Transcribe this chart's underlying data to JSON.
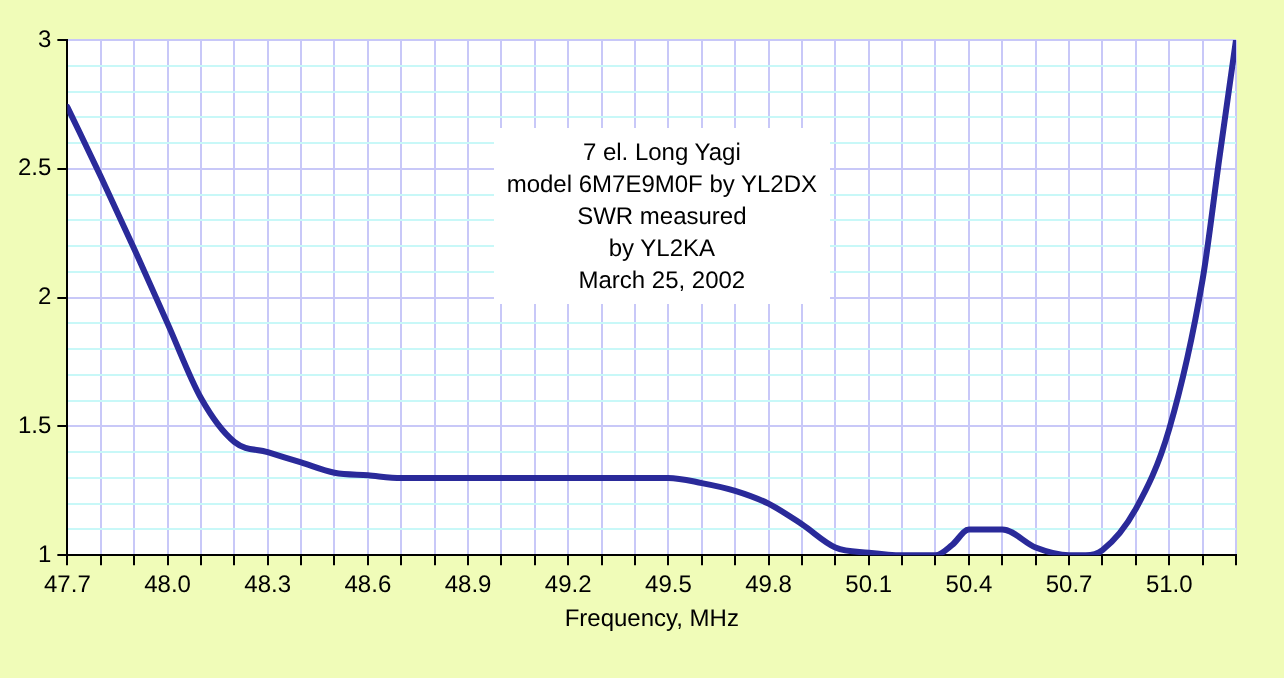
{
  "chart_data": {
    "type": "line",
    "xlabel": "Frequency, MHz",
    "annotations": [
      "7 el. Long Yagi",
      "model 6M7E9M0F by YL2DX",
      "SWR measured",
      "by YL2KA",
      "March 25, 2002"
    ],
    "x": [
      47.7,
      47.8,
      47.9,
      48.0,
      48.1,
      48.2,
      48.3,
      48.4,
      48.5,
      48.6,
      48.7,
      49.0,
      49.3,
      49.5,
      49.6,
      49.7,
      49.8,
      49.9,
      50.0,
      50.1,
      50.2,
      50.3,
      50.35,
      50.4,
      50.5,
      50.6,
      50.7,
      50.75,
      50.8,
      50.9,
      51.0,
      51.1,
      51.15,
      51.2
    ],
    "series": [
      {
        "color": "#2a2a9a",
        "values": [
          2.74,
          2.47,
          2.19,
          1.9,
          1.61,
          1.44,
          1.4,
          1.36,
          1.32,
          1.31,
          1.3,
          1.3,
          1.3,
          1.3,
          1.28,
          1.25,
          1.2,
          1.12,
          1.03,
          1.01,
          1.0,
          1.0,
          1.04,
          1.1,
          1.1,
          1.03,
          1.0,
          1.0,
          1.02,
          1.18,
          1.49,
          2.07,
          2.54,
          3.0
        ]
      }
    ],
    "xlim": [
      47.7,
      51.2
    ],
    "xticks": [
      47.7,
      {
        "value": 47.8,
        "label": null
      },
      {
        "value": 47.9,
        "label": null
      },
      {
        "value": 48.0,
        "label": "48.0"
      },
      {
        "value": 48.1,
        "label": null
      },
      {
        "value": 48.2,
        "label": null
      },
      48.3,
      {
        "value": 48.4,
        "label": null
      },
      {
        "value": 48.5,
        "label": null
      },
      48.6,
      {
        "value": 48.7,
        "label": null
      },
      {
        "value": 48.8,
        "label": null
      },
      48.9,
      {
        "value": 49.0,
        "label": null
      },
      {
        "value": 49.1,
        "label": null
      },
      49.2,
      {
        "value": 49.3,
        "label": null
      },
      {
        "value": 49.4,
        "label": null
      },
      49.5,
      {
        "value": 49.6,
        "label": null
      },
      {
        "value": 49.7,
        "label": null
      },
      49.8,
      {
        "value": 49.9,
        "label": null
      },
      {
        "value": 50.0,
        "label": null
      },
      50.1,
      {
        "value": 50.2,
        "label": null
      },
      {
        "value": 50.3,
        "label": null
      },
      50.4,
      {
        "value": 50.5,
        "label": null
      },
      {
        "value": 50.6,
        "label": null
      },
      50.7,
      {
        "value": 50.8,
        "label": null
      },
      {
        "value": 50.9,
        "label": null
      },
      {
        "value": 51.0,
        "label": "51.0"
      },
      {
        "value": 51.1,
        "label": null
      },
      {
        "value": 51.2,
        "label": null
      }
    ],
    "ylim": [
      1,
      3
    ],
    "yticks": [
      1,
      {
        "value": 1.1,
        "label": null
      },
      {
        "value": 1.2,
        "label": null
      },
      {
        "value": 1.3,
        "label": null
      },
      {
        "value": 1.4,
        "label": null
      },
      1.5,
      {
        "value": 1.6,
        "label": null
      },
      {
        "value": 1.7,
        "label": null
      },
      {
        "value": 1.8,
        "label": null
      },
      {
        "value": 1.9,
        "label": null
      },
      2,
      {
        "value": 2.1,
        "label": null
      },
      {
        "value": 2.2,
        "label": null
      },
      {
        "value": 2.3,
        "label": null
      },
      {
        "value": 2.4,
        "label": null
      },
      2.5,
      {
        "value": 2.6,
        "label": null
      },
      {
        "value": 2.7,
        "label": null
      },
      {
        "value": 2.8,
        "label": null
      },
      {
        "value": 2.9,
        "label": null
      },
      3
    ],
    "grid": true,
    "legend": false,
    "marker": "none",
    "line_style": "solid"
  }
}
